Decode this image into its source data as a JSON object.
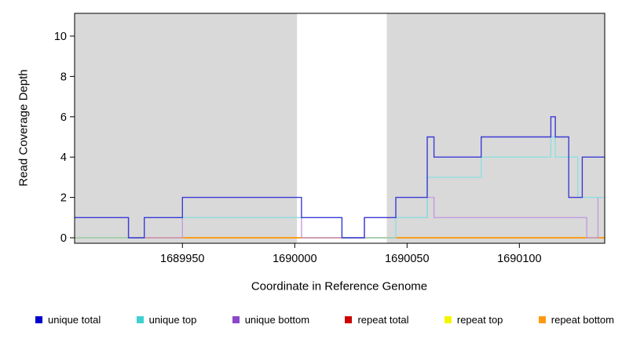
{
  "chart_data": {
    "type": "line",
    "subtype": "step-coverage-plot",
    "title": "",
    "xlabel": "Coordinate in Reference Genome",
    "ylabel": "Read Coverage Depth",
    "xlim": [
      1689902,
      1690138
    ],
    "ylim": [
      0,
      11
    ],
    "x_ticks": [
      1689950,
      1690000,
      1690050,
      1690100
    ],
    "y_ticks": [
      0,
      2,
      4,
      6,
      8,
      10
    ],
    "grid": false,
    "plot_bg": "#ffffff",
    "shaded_color": "#d9d9d9",
    "shaded_regions": [
      {
        "x0": 1689902,
        "x1": 1690001
      },
      {
        "x0": 1690041,
        "x1": 1690138
      }
    ],
    "series": [
      {
        "name": "repeat total",
        "color": "#cc0000",
        "points": [
          [
            1689902,
            0
          ]
        ]
      },
      {
        "name": "repeat top",
        "color": "#eded00",
        "points": [
          [
            1689902,
            0
          ]
        ]
      },
      {
        "name": "repeat bottom",
        "color": "#ff9913",
        "points": [
          [
            1689902,
            0
          ]
        ]
      },
      {
        "name": "unique bottom",
        "color": "#c49be0",
        "points": [
          [
            1689902,
            1
          ],
          [
            1689926,
            0
          ],
          [
            1689950,
            1
          ],
          [
            1690003,
            0
          ],
          [
            1690031,
            1
          ],
          [
            1690059,
            2
          ],
          [
            1690062,
            1
          ],
          [
            1690130,
            0
          ],
          [
            1690135,
            2
          ]
        ]
      },
      {
        "name": "unique top",
        "color": "#8fdede",
        "points": [
          [
            1689902,
            0
          ],
          [
            1689933,
            1
          ],
          [
            1690021,
            0
          ],
          [
            1690045,
            1
          ],
          [
            1690059,
            3
          ],
          [
            1690083,
            4
          ],
          [
            1690114,
            5
          ],
          [
            1690116,
            4
          ],
          [
            1690126,
            2
          ]
        ]
      },
      {
        "name": "unique total",
        "color": "#3b3bd6",
        "points": [
          [
            1689902,
            1
          ],
          [
            1689926,
            0
          ],
          [
            1689933,
            1
          ],
          [
            1689950,
            2
          ],
          [
            1690003,
            1
          ],
          [
            1690021,
            0
          ],
          [
            1690031,
            1
          ],
          [
            1690045,
            2
          ],
          [
            1690059,
            5
          ],
          [
            1690062,
            4
          ],
          [
            1690083,
            5
          ],
          [
            1690114,
            6
          ],
          [
            1690116,
            5
          ],
          [
            1690122,
            2
          ],
          [
            1690128,
            4
          ]
        ]
      }
    ],
    "legend": [
      {
        "label": "unique total",
        "color": "#0000cd"
      },
      {
        "label": "unique top",
        "color": "#40d0d0"
      },
      {
        "label": "unique bottom",
        "color": "#8b47cc"
      },
      {
        "label": "repeat total",
        "color": "#cc0000"
      },
      {
        "label": "repeat top",
        "color": "#f5f500"
      },
      {
        "label": "repeat bottom",
        "color": "#ff9913"
      }
    ],
    "legend_position": "bottom"
  }
}
